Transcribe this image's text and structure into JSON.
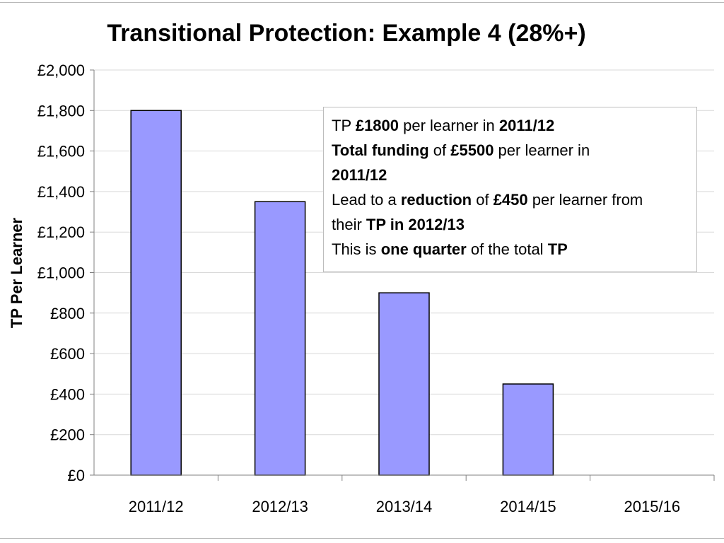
{
  "chart_data": {
    "type": "bar",
    "title": "Transitional Protection: Example 4 (28%+)",
    "ylabel": "TP Per Learner",
    "xlabel": "",
    "categories": [
      "2011/12",
      "2012/13",
      "2013/14",
      "2014/15",
      "2015/16"
    ],
    "values": [
      1800,
      1350,
      900,
      450,
      0
    ],
    "ylim": [
      0,
      2000
    ],
    "yticks": [
      "£0",
      "£200",
      "£400",
      "£600",
      "£800",
      "£1,000",
      "£1,200",
      "£1,400",
      "£1,600",
      "£1,800",
      "£2,000"
    ],
    "grid": true,
    "bar_color": "#9999ff",
    "bar_edge_color": "#000000"
  },
  "annotation": {
    "lines": [
      [
        {
          "t": "TP ",
          "b": false
        },
        {
          "t": "£1800",
          "b": true
        },
        {
          "t": " per learner in ",
          "b": false
        },
        {
          "t": "2011/12",
          "b": true
        }
      ],
      [
        {
          "t": "Total funding",
          "b": true
        },
        {
          "t": " of ",
          "b": false
        },
        {
          "t": "£5500",
          "b": true
        },
        {
          "t": " per learner in",
          "b": false
        }
      ],
      [
        {
          "t": "2011/12",
          "b": true
        }
      ],
      [
        {
          "t": "Lead to a ",
          "b": false
        },
        {
          "t": "reduction",
          "b": true
        },
        {
          "t": " of ",
          "b": false
        },
        {
          "t": "£450",
          "b": true
        },
        {
          "t": " per learner from",
          "b": false
        }
      ],
      [
        {
          "t": "their ",
          "b": false
        },
        {
          "t": "TP in 2012/13",
          "b": true
        }
      ],
      [
        {
          "t": "This is ",
          "b": false
        },
        {
          "t": "one quarter",
          "b": true
        },
        {
          "t": " of the total ",
          "b": false
        },
        {
          "t": "TP",
          "b": true
        }
      ]
    ]
  }
}
